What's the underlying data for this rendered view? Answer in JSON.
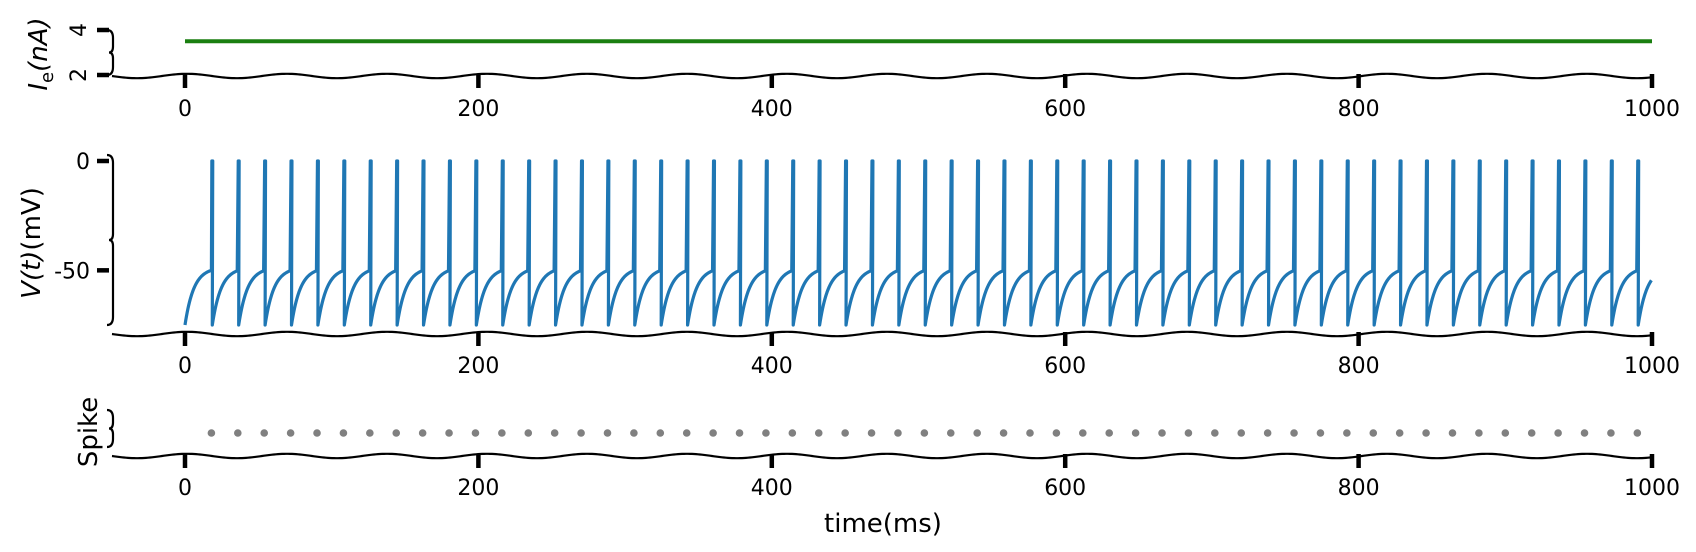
{
  "chart_data": [
    {
      "type": "line",
      "panel": "input-current",
      "ylabel": "I_e(nA)",
      "ylabel_main": "I",
      "ylabel_sub": "e",
      "ylabel_rest": "(nA)",
      "xlim": [
        0,
        1000
      ],
      "ylim": [
        2,
        4
      ],
      "x_ticks": [
        "0",
        "200",
        "400",
        "600",
        "800",
        "1000"
      ],
      "x_tick_values": [
        0,
        200,
        400,
        600,
        800,
        1000
      ],
      "y_ticks": [
        "2",
        "4"
      ],
      "y_tick_values": [
        2,
        4
      ],
      "series": [
        {
          "x": [
            0,
            1000
          ],
          "y": [
            3.5,
            3.5
          ],
          "color": "#1a7f10"
        }
      ]
    },
    {
      "type": "line",
      "panel": "membrane-potential",
      "ylabel": "V(t)(mV)",
      "ylabel_italic": "V(t)",
      "ylabel_rest": "(mV)",
      "xlim": [
        0,
        1000
      ],
      "ylim": [
        -75,
        0
      ],
      "x_ticks": [
        "0",
        "200",
        "400",
        "600",
        "800",
        "1000"
      ],
      "x_tick_values": [
        0,
        200,
        400,
        600,
        800,
        1000
      ],
      "y_ticks": [
        "0",
        "-50"
      ],
      "y_tick_values": [
        0,
        -50
      ],
      "v_rest": -75,
      "v_threshold": -50,
      "v_peak": 0,
      "first_spike_ms": 18,
      "isi_ms": 18,
      "color": "#1f77b4"
    },
    {
      "type": "scatter",
      "panel": "spikes",
      "ylabel": "Spike",
      "xlim": [
        0,
        1000
      ],
      "x_ticks": [
        "0",
        "200",
        "400",
        "600",
        "800",
        "1000"
      ],
      "x_tick_values": [
        0,
        200,
        400,
        600,
        800,
        1000
      ],
      "xlabel": "time(ms)",
      "spike_times_ms": [
        18,
        36,
        54,
        72,
        90,
        108,
        126,
        144,
        162,
        180,
        198,
        216,
        234,
        252,
        270,
        288,
        306,
        324,
        342,
        360,
        378,
        396,
        414,
        432,
        450,
        468,
        486,
        504,
        522,
        540,
        558,
        576,
        594,
        612,
        630,
        648,
        666,
        684,
        702,
        720,
        738,
        756,
        774,
        792,
        810,
        828,
        846,
        864,
        882,
        900,
        918,
        936,
        954,
        972,
        990
      ],
      "color": "#808080"
    }
  ]
}
